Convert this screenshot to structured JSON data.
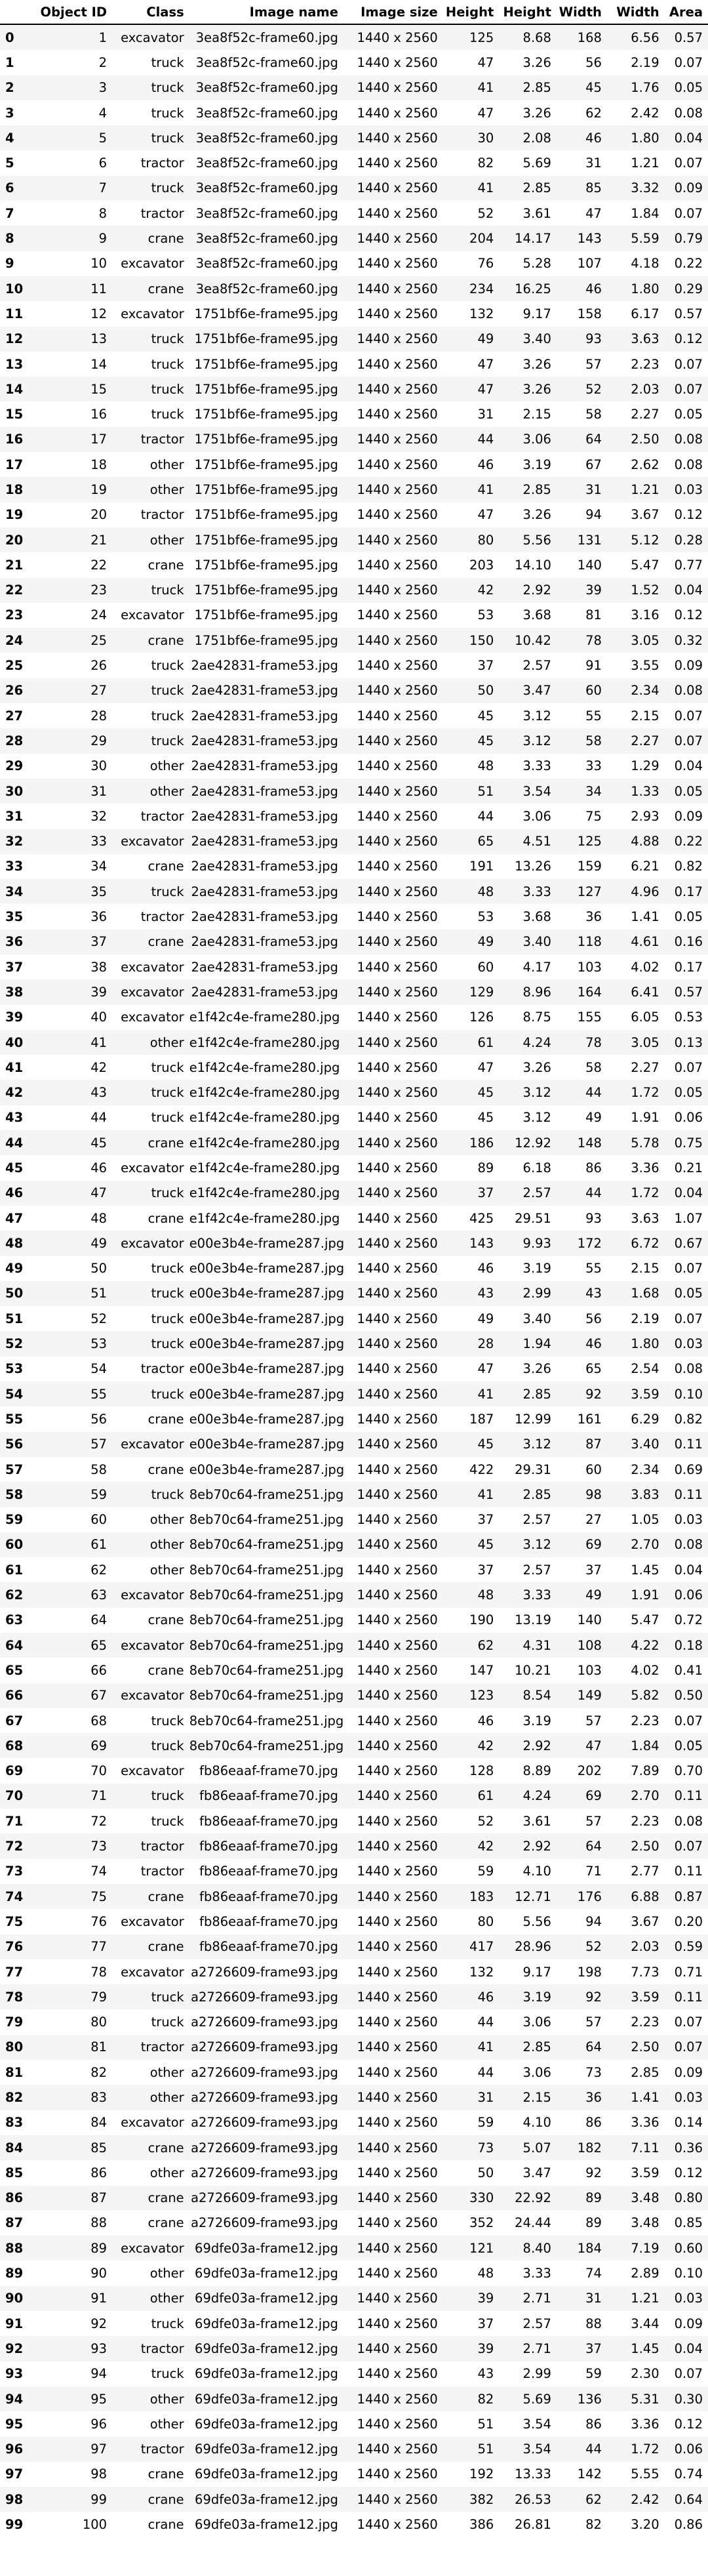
{
  "table": {
    "columns": [
      "",
      "Object ID",
      "Class",
      "Image name",
      "Image size",
      "Height",
      "Height",
      "Width",
      "Width",
      "Area"
    ],
    "rows": [
      [
        "0",
        "1",
        "excavator",
        "3ea8f52c-frame60.jpg",
        "1440 x 2560",
        "125",
        "8.68",
        "168",
        "6.56",
        "0.57"
      ],
      [
        "1",
        "2",
        "truck",
        "3ea8f52c-frame60.jpg",
        "1440 x 2560",
        "47",
        "3.26",
        "56",
        "2.19",
        "0.07"
      ],
      [
        "2",
        "3",
        "truck",
        "3ea8f52c-frame60.jpg",
        "1440 x 2560",
        "41",
        "2.85",
        "45",
        "1.76",
        "0.05"
      ],
      [
        "3",
        "4",
        "truck",
        "3ea8f52c-frame60.jpg",
        "1440 x 2560",
        "47",
        "3.26",
        "62",
        "2.42",
        "0.08"
      ],
      [
        "4",
        "5",
        "truck",
        "3ea8f52c-frame60.jpg",
        "1440 x 2560",
        "30",
        "2.08",
        "46",
        "1.80",
        "0.04"
      ],
      [
        "5",
        "6",
        "tractor",
        "3ea8f52c-frame60.jpg",
        "1440 x 2560",
        "82",
        "5.69",
        "31",
        "1.21",
        "0.07"
      ],
      [
        "6",
        "7",
        "truck",
        "3ea8f52c-frame60.jpg",
        "1440 x 2560",
        "41",
        "2.85",
        "85",
        "3.32",
        "0.09"
      ],
      [
        "7",
        "8",
        "tractor",
        "3ea8f52c-frame60.jpg",
        "1440 x 2560",
        "52",
        "3.61",
        "47",
        "1.84",
        "0.07"
      ],
      [
        "8",
        "9",
        "crane",
        "3ea8f52c-frame60.jpg",
        "1440 x 2560",
        "204",
        "14.17",
        "143",
        "5.59",
        "0.79"
      ],
      [
        "9",
        "10",
        "excavator",
        "3ea8f52c-frame60.jpg",
        "1440 x 2560",
        "76",
        "5.28",
        "107",
        "4.18",
        "0.22"
      ],
      [
        "10",
        "11",
        "crane",
        "3ea8f52c-frame60.jpg",
        "1440 x 2560",
        "234",
        "16.25",
        "46",
        "1.80",
        "0.29"
      ],
      [
        "11",
        "12",
        "excavator",
        "1751bf6e-frame95.jpg",
        "1440 x 2560",
        "132",
        "9.17",
        "158",
        "6.17",
        "0.57"
      ],
      [
        "12",
        "13",
        "truck",
        "1751bf6e-frame95.jpg",
        "1440 x 2560",
        "49",
        "3.40",
        "93",
        "3.63",
        "0.12"
      ],
      [
        "13",
        "14",
        "truck",
        "1751bf6e-frame95.jpg",
        "1440 x 2560",
        "47",
        "3.26",
        "57",
        "2.23",
        "0.07"
      ],
      [
        "14",
        "15",
        "truck",
        "1751bf6e-frame95.jpg",
        "1440 x 2560",
        "47",
        "3.26",
        "52",
        "2.03",
        "0.07"
      ],
      [
        "15",
        "16",
        "truck",
        "1751bf6e-frame95.jpg",
        "1440 x 2560",
        "31",
        "2.15",
        "58",
        "2.27",
        "0.05"
      ],
      [
        "16",
        "17",
        "tractor",
        "1751bf6e-frame95.jpg",
        "1440 x 2560",
        "44",
        "3.06",
        "64",
        "2.50",
        "0.08"
      ],
      [
        "17",
        "18",
        "other",
        "1751bf6e-frame95.jpg",
        "1440 x 2560",
        "46",
        "3.19",
        "67",
        "2.62",
        "0.08"
      ],
      [
        "18",
        "19",
        "other",
        "1751bf6e-frame95.jpg",
        "1440 x 2560",
        "41",
        "2.85",
        "31",
        "1.21",
        "0.03"
      ],
      [
        "19",
        "20",
        "tractor",
        "1751bf6e-frame95.jpg",
        "1440 x 2560",
        "47",
        "3.26",
        "94",
        "3.67",
        "0.12"
      ],
      [
        "20",
        "21",
        "other",
        "1751bf6e-frame95.jpg",
        "1440 x 2560",
        "80",
        "5.56",
        "131",
        "5.12",
        "0.28"
      ],
      [
        "21",
        "22",
        "crane",
        "1751bf6e-frame95.jpg",
        "1440 x 2560",
        "203",
        "14.10",
        "140",
        "5.47",
        "0.77"
      ],
      [
        "22",
        "23",
        "truck",
        "1751bf6e-frame95.jpg",
        "1440 x 2560",
        "42",
        "2.92",
        "39",
        "1.52",
        "0.04"
      ],
      [
        "23",
        "24",
        "excavator",
        "1751bf6e-frame95.jpg",
        "1440 x 2560",
        "53",
        "3.68",
        "81",
        "3.16",
        "0.12"
      ],
      [
        "24",
        "25",
        "crane",
        "1751bf6e-frame95.jpg",
        "1440 x 2560",
        "150",
        "10.42",
        "78",
        "3.05",
        "0.32"
      ],
      [
        "25",
        "26",
        "truck",
        "2ae42831-frame53.jpg",
        "1440 x 2560",
        "37",
        "2.57",
        "91",
        "3.55",
        "0.09"
      ],
      [
        "26",
        "27",
        "truck",
        "2ae42831-frame53.jpg",
        "1440 x 2560",
        "50",
        "3.47",
        "60",
        "2.34",
        "0.08"
      ],
      [
        "27",
        "28",
        "truck",
        "2ae42831-frame53.jpg",
        "1440 x 2560",
        "45",
        "3.12",
        "55",
        "2.15",
        "0.07"
      ],
      [
        "28",
        "29",
        "truck",
        "2ae42831-frame53.jpg",
        "1440 x 2560",
        "45",
        "3.12",
        "58",
        "2.27",
        "0.07"
      ],
      [
        "29",
        "30",
        "other",
        "2ae42831-frame53.jpg",
        "1440 x 2560",
        "48",
        "3.33",
        "33",
        "1.29",
        "0.04"
      ],
      [
        "30",
        "31",
        "other",
        "2ae42831-frame53.jpg",
        "1440 x 2560",
        "51",
        "3.54",
        "34",
        "1.33",
        "0.05"
      ],
      [
        "31",
        "32",
        "tractor",
        "2ae42831-frame53.jpg",
        "1440 x 2560",
        "44",
        "3.06",
        "75",
        "2.93",
        "0.09"
      ],
      [
        "32",
        "33",
        "excavator",
        "2ae42831-frame53.jpg",
        "1440 x 2560",
        "65",
        "4.51",
        "125",
        "4.88",
        "0.22"
      ],
      [
        "33",
        "34",
        "crane",
        "2ae42831-frame53.jpg",
        "1440 x 2560",
        "191",
        "13.26",
        "159",
        "6.21",
        "0.82"
      ],
      [
        "34",
        "35",
        "truck",
        "2ae42831-frame53.jpg",
        "1440 x 2560",
        "48",
        "3.33",
        "127",
        "4.96",
        "0.17"
      ],
      [
        "35",
        "36",
        "tractor",
        "2ae42831-frame53.jpg",
        "1440 x 2560",
        "53",
        "3.68",
        "36",
        "1.41",
        "0.05"
      ],
      [
        "36",
        "37",
        "crane",
        "2ae42831-frame53.jpg",
        "1440 x 2560",
        "49",
        "3.40",
        "118",
        "4.61",
        "0.16"
      ],
      [
        "37",
        "38",
        "excavator",
        "2ae42831-frame53.jpg",
        "1440 x 2560",
        "60",
        "4.17",
        "103",
        "4.02",
        "0.17"
      ],
      [
        "38",
        "39",
        "excavator",
        "2ae42831-frame53.jpg",
        "1440 x 2560",
        "129",
        "8.96",
        "164",
        "6.41",
        "0.57"
      ],
      [
        "39",
        "40",
        "excavator",
        "e1f42c4e-frame280.jpg",
        "1440 x 2560",
        "126",
        "8.75",
        "155",
        "6.05",
        "0.53"
      ],
      [
        "40",
        "41",
        "other",
        "e1f42c4e-frame280.jpg",
        "1440 x 2560",
        "61",
        "4.24",
        "78",
        "3.05",
        "0.13"
      ],
      [
        "41",
        "42",
        "truck",
        "e1f42c4e-frame280.jpg",
        "1440 x 2560",
        "47",
        "3.26",
        "58",
        "2.27",
        "0.07"
      ],
      [
        "42",
        "43",
        "truck",
        "e1f42c4e-frame280.jpg",
        "1440 x 2560",
        "45",
        "3.12",
        "44",
        "1.72",
        "0.05"
      ],
      [
        "43",
        "44",
        "truck",
        "e1f42c4e-frame280.jpg",
        "1440 x 2560",
        "45",
        "3.12",
        "49",
        "1.91",
        "0.06"
      ],
      [
        "44",
        "45",
        "crane",
        "e1f42c4e-frame280.jpg",
        "1440 x 2560",
        "186",
        "12.92",
        "148",
        "5.78",
        "0.75"
      ],
      [
        "45",
        "46",
        "excavator",
        "e1f42c4e-frame280.jpg",
        "1440 x 2560",
        "89",
        "6.18",
        "86",
        "3.36",
        "0.21"
      ],
      [
        "46",
        "47",
        "truck",
        "e1f42c4e-frame280.jpg",
        "1440 x 2560",
        "37",
        "2.57",
        "44",
        "1.72",
        "0.04"
      ],
      [
        "47",
        "48",
        "crane",
        "e1f42c4e-frame280.jpg",
        "1440 x 2560",
        "425",
        "29.51",
        "93",
        "3.63",
        "1.07"
      ],
      [
        "48",
        "49",
        "excavator",
        "e00e3b4e-frame287.jpg",
        "1440 x 2560",
        "143",
        "9.93",
        "172",
        "6.72",
        "0.67"
      ],
      [
        "49",
        "50",
        "truck",
        "e00e3b4e-frame287.jpg",
        "1440 x 2560",
        "46",
        "3.19",
        "55",
        "2.15",
        "0.07"
      ],
      [
        "50",
        "51",
        "truck",
        "e00e3b4e-frame287.jpg",
        "1440 x 2560",
        "43",
        "2.99",
        "43",
        "1.68",
        "0.05"
      ],
      [
        "51",
        "52",
        "truck",
        "e00e3b4e-frame287.jpg",
        "1440 x 2560",
        "49",
        "3.40",
        "56",
        "2.19",
        "0.07"
      ],
      [
        "52",
        "53",
        "truck",
        "e00e3b4e-frame287.jpg",
        "1440 x 2560",
        "28",
        "1.94",
        "46",
        "1.80",
        "0.03"
      ],
      [
        "53",
        "54",
        "tractor",
        "e00e3b4e-frame287.jpg",
        "1440 x 2560",
        "47",
        "3.26",
        "65",
        "2.54",
        "0.08"
      ],
      [
        "54",
        "55",
        "truck",
        "e00e3b4e-frame287.jpg",
        "1440 x 2560",
        "41",
        "2.85",
        "92",
        "3.59",
        "0.10"
      ],
      [
        "55",
        "56",
        "crane",
        "e00e3b4e-frame287.jpg",
        "1440 x 2560",
        "187",
        "12.99",
        "161",
        "6.29",
        "0.82"
      ],
      [
        "56",
        "57",
        "excavator",
        "e00e3b4e-frame287.jpg",
        "1440 x 2560",
        "45",
        "3.12",
        "87",
        "3.40",
        "0.11"
      ],
      [
        "57",
        "58",
        "crane",
        "e00e3b4e-frame287.jpg",
        "1440 x 2560",
        "422",
        "29.31",
        "60",
        "2.34",
        "0.69"
      ],
      [
        "58",
        "59",
        "truck",
        "8eb70c64-frame251.jpg",
        "1440 x 2560",
        "41",
        "2.85",
        "98",
        "3.83",
        "0.11"
      ],
      [
        "59",
        "60",
        "other",
        "8eb70c64-frame251.jpg",
        "1440 x 2560",
        "37",
        "2.57",
        "27",
        "1.05",
        "0.03"
      ],
      [
        "60",
        "61",
        "other",
        "8eb70c64-frame251.jpg",
        "1440 x 2560",
        "45",
        "3.12",
        "69",
        "2.70",
        "0.08"
      ],
      [
        "61",
        "62",
        "other",
        "8eb70c64-frame251.jpg",
        "1440 x 2560",
        "37",
        "2.57",
        "37",
        "1.45",
        "0.04"
      ],
      [
        "62",
        "63",
        "excavator",
        "8eb70c64-frame251.jpg",
        "1440 x 2560",
        "48",
        "3.33",
        "49",
        "1.91",
        "0.06"
      ],
      [
        "63",
        "64",
        "crane",
        "8eb70c64-frame251.jpg",
        "1440 x 2560",
        "190",
        "13.19",
        "140",
        "5.47",
        "0.72"
      ],
      [
        "64",
        "65",
        "excavator",
        "8eb70c64-frame251.jpg",
        "1440 x 2560",
        "62",
        "4.31",
        "108",
        "4.22",
        "0.18"
      ],
      [
        "65",
        "66",
        "crane",
        "8eb70c64-frame251.jpg",
        "1440 x 2560",
        "147",
        "10.21",
        "103",
        "4.02",
        "0.41"
      ],
      [
        "66",
        "67",
        "excavator",
        "8eb70c64-frame251.jpg",
        "1440 x 2560",
        "123",
        "8.54",
        "149",
        "5.82",
        "0.50"
      ],
      [
        "67",
        "68",
        "truck",
        "8eb70c64-frame251.jpg",
        "1440 x 2560",
        "46",
        "3.19",
        "57",
        "2.23",
        "0.07"
      ],
      [
        "68",
        "69",
        "truck",
        "8eb70c64-frame251.jpg",
        "1440 x 2560",
        "42",
        "2.92",
        "47",
        "1.84",
        "0.05"
      ],
      [
        "69",
        "70",
        "excavator",
        "fb86eaaf-frame70.jpg",
        "1440 x 2560",
        "128",
        "8.89",
        "202",
        "7.89",
        "0.70"
      ],
      [
        "70",
        "71",
        "truck",
        "fb86eaaf-frame70.jpg",
        "1440 x 2560",
        "61",
        "4.24",
        "69",
        "2.70",
        "0.11"
      ],
      [
        "71",
        "72",
        "truck",
        "fb86eaaf-frame70.jpg",
        "1440 x 2560",
        "52",
        "3.61",
        "57",
        "2.23",
        "0.08"
      ],
      [
        "72",
        "73",
        "tractor",
        "fb86eaaf-frame70.jpg",
        "1440 x 2560",
        "42",
        "2.92",
        "64",
        "2.50",
        "0.07"
      ],
      [
        "73",
        "74",
        "tractor",
        "fb86eaaf-frame70.jpg",
        "1440 x 2560",
        "59",
        "4.10",
        "71",
        "2.77",
        "0.11"
      ],
      [
        "74",
        "75",
        "crane",
        "fb86eaaf-frame70.jpg",
        "1440 x 2560",
        "183",
        "12.71",
        "176",
        "6.88",
        "0.87"
      ],
      [
        "75",
        "76",
        "excavator",
        "fb86eaaf-frame70.jpg",
        "1440 x 2560",
        "80",
        "5.56",
        "94",
        "3.67",
        "0.20"
      ],
      [
        "76",
        "77",
        "crane",
        "fb86eaaf-frame70.jpg",
        "1440 x 2560",
        "417",
        "28.96",
        "52",
        "2.03",
        "0.59"
      ],
      [
        "77",
        "78",
        "excavator",
        "a2726609-frame93.jpg",
        "1440 x 2560",
        "132",
        "9.17",
        "198",
        "7.73",
        "0.71"
      ],
      [
        "78",
        "79",
        "truck",
        "a2726609-frame93.jpg",
        "1440 x 2560",
        "46",
        "3.19",
        "92",
        "3.59",
        "0.11"
      ],
      [
        "79",
        "80",
        "truck",
        "a2726609-frame93.jpg",
        "1440 x 2560",
        "44",
        "3.06",
        "57",
        "2.23",
        "0.07"
      ],
      [
        "80",
        "81",
        "tractor",
        "a2726609-frame93.jpg",
        "1440 x 2560",
        "41",
        "2.85",
        "64",
        "2.50",
        "0.07"
      ],
      [
        "81",
        "82",
        "other",
        "a2726609-frame93.jpg",
        "1440 x 2560",
        "44",
        "3.06",
        "73",
        "2.85",
        "0.09"
      ],
      [
        "82",
        "83",
        "other",
        "a2726609-frame93.jpg",
        "1440 x 2560",
        "31",
        "2.15",
        "36",
        "1.41",
        "0.03"
      ],
      [
        "83",
        "84",
        "excavator",
        "a2726609-frame93.jpg",
        "1440 x 2560",
        "59",
        "4.10",
        "86",
        "3.36",
        "0.14"
      ],
      [
        "84",
        "85",
        "crane",
        "a2726609-frame93.jpg",
        "1440 x 2560",
        "73",
        "5.07",
        "182",
        "7.11",
        "0.36"
      ],
      [
        "85",
        "86",
        "other",
        "a2726609-frame93.jpg",
        "1440 x 2560",
        "50",
        "3.47",
        "92",
        "3.59",
        "0.12"
      ],
      [
        "86",
        "87",
        "crane",
        "a2726609-frame93.jpg",
        "1440 x 2560",
        "330",
        "22.92",
        "89",
        "3.48",
        "0.80"
      ],
      [
        "87",
        "88",
        "crane",
        "a2726609-frame93.jpg",
        "1440 x 2560",
        "352",
        "24.44",
        "89",
        "3.48",
        "0.85"
      ],
      [
        "88",
        "89",
        "excavator",
        "69dfe03a-frame12.jpg",
        "1440 x 2560",
        "121",
        "8.40",
        "184",
        "7.19",
        "0.60"
      ],
      [
        "89",
        "90",
        "other",
        "69dfe03a-frame12.jpg",
        "1440 x 2560",
        "48",
        "3.33",
        "74",
        "2.89",
        "0.10"
      ],
      [
        "90",
        "91",
        "other",
        "69dfe03a-frame12.jpg",
        "1440 x 2560",
        "39",
        "2.71",
        "31",
        "1.21",
        "0.03"
      ],
      [
        "91",
        "92",
        "truck",
        "69dfe03a-frame12.jpg",
        "1440 x 2560",
        "37",
        "2.57",
        "88",
        "3.44",
        "0.09"
      ],
      [
        "92",
        "93",
        "tractor",
        "69dfe03a-frame12.jpg",
        "1440 x 2560",
        "39",
        "2.71",
        "37",
        "1.45",
        "0.04"
      ],
      [
        "93",
        "94",
        "truck",
        "69dfe03a-frame12.jpg",
        "1440 x 2560",
        "43",
        "2.99",
        "59",
        "2.30",
        "0.07"
      ],
      [
        "94",
        "95",
        "other",
        "69dfe03a-frame12.jpg",
        "1440 x 2560",
        "82",
        "5.69",
        "136",
        "5.31",
        "0.30"
      ],
      [
        "95",
        "96",
        "other",
        "69dfe03a-frame12.jpg",
        "1440 x 2560",
        "51",
        "3.54",
        "86",
        "3.36",
        "0.12"
      ],
      [
        "96",
        "97",
        "tractor",
        "69dfe03a-frame12.jpg",
        "1440 x 2560",
        "51",
        "3.54",
        "44",
        "1.72",
        "0.06"
      ],
      [
        "97",
        "98",
        "crane",
        "69dfe03a-frame12.jpg",
        "1440 x 2560",
        "192",
        "13.33",
        "142",
        "5.55",
        "0.74"
      ],
      [
        "98",
        "99",
        "crane",
        "69dfe03a-frame12.jpg",
        "1440 x 2560",
        "382",
        "26.53",
        "62",
        "2.42",
        "0.64"
      ],
      [
        "99",
        "100",
        "crane",
        "69dfe03a-frame12.jpg",
        "1440 x 2560",
        "386",
        "26.81",
        "82",
        "3.20",
        "0.86"
      ]
    ]
  }
}
